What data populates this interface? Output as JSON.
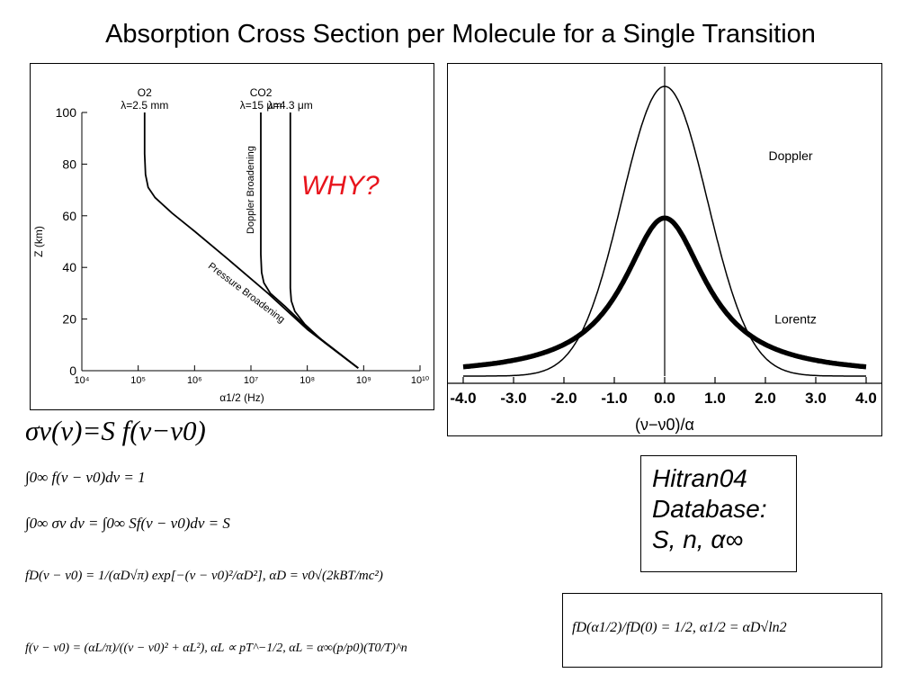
{
  "page": {
    "title": "Absorption Cross Section per Molecule  for a Single Transition",
    "annotation_why": "WHY?",
    "hitran_lines": [
      "Hitran04",
      "Database:",
      "S, n, α∞"
    ]
  },
  "equations": {
    "main": "σν(ν)=S  f(ν−ν0)",
    "norm": "∫0∞ f(ν − ν0)dν = 1",
    "integral": "∫0∞ σν dν = ∫0∞ Sf(ν − ν0)dν = S",
    "doppler": "fD(ν − ν0) = 1/(αD√π) exp[−(ν − ν0)²/αD²],  αD = ν0√(2kBT/mc²)",
    "lorentz": "f(ν − ν0) = (αL/π)/((ν − ν0)² + αL²),  αL ∝ pT^−1/2,  αL = α∞(p/p0)(T0/T)^n",
    "ratio": "fD(α1/2)/fD(0) = 1/2,          α1/2 = αD√ln2"
  },
  "chart_data": [
    {
      "type": "line",
      "title": "",
      "xlabel": "α1/2 (Hz)",
      "ylabel": "Z (km)",
      "xscale": "log",
      "xlim": [
        10000,
        10000000000
      ],
      "ylim": [
        0,
        100
      ],
      "x_ticks": [
        "10⁴",
        "10⁵",
        "10⁶",
        "10⁷",
        "10⁸",
        "10⁹",
        "10¹⁰"
      ],
      "y_ticks": [
        "0",
        "20",
        "40",
        "60",
        "80",
        "100"
      ],
      "grid": false,
      "series": [
        {
          "name": "O2 λ=2.5 mm",
          "label_top": "O2",
          "label_bottom": "λ=2.5 mm",
          "x": [
            130000,
            130000,
            135000,
            150000,
            200000,
            400000,
            1000000,
            4000000,
            20000000,
            100000000,
            800000000
          ],
          "y": [
            100,
            84,
            76,
            71,
            67,
            61,
            54,
            43,
            30,
            16,
            1
          ]
        },
        {
          "name": "CO2 λ=15 μm",
          "label_top": "CO2",
          "label_bottom": "λ=15 μm",
          "x": [
            15000000,
            15000000,
            15000000,
            15500000,
            17000000,
            22000000,
            40000000,
            120000000,
            800000000
          ],
          "y": [
            100,
            60,
            45,
            38,
            34,
            30,
            25,
            15,
            1
          ]
        },
        {
          "name": "CO2 λ=4.3 μm",
          "label_bottom": "λ=4.3 μm",
          "x": [
            50000000,
            50000000,
            50000000,
            52000000,
            60000000,
            90000000,
            200000000,
            800000000
          ],
          "y": [
            100,
            45,
            32,
            27,
            23,
            18,
            11,
            1
          ]
        }
      ],
      "annotations": [
        "Doppler Broadening",
        "Pressure Broadening"
      ]
    },
    {
      "type": "line",
      "title": "",
      "xlabel": "(ν−ν0)/α",
      "ylabel": "",
      "xlim": [
        -4.0,
        4.0
      ],
      "x_ticks": [
        "-4.0",
        "-3.0",
        "-2.0",
        "-1.0",
        "0.0",
        "1.0",
        "2.0",
        "3.0",
        "4.0"
      ],
      "grid": false,
      "series": [
        {
          "name": "Doppler",
          "peak": 1.1,
          "profile": "gaussian"
        },
        {
          "name": "Lorentz",
          "peak": 0.6,
          "profile": "lorentzian"
        }
      ]
    }
  ]
}
